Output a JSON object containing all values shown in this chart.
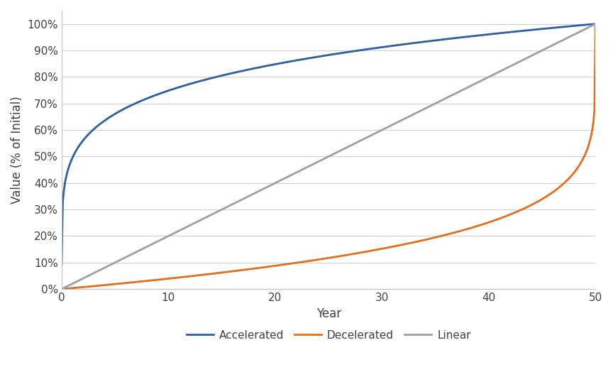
{
  "title": "",
  "xlabel": "Year",
  "ylabel": "Value (% of Initial)",
  "x_min": 0,
  "x_max": 50,
  "y_min": 0.0,
  "y_max": 1.0,
  "x_ticks": [
    0,
    10,
    20,
    30,
    40,
    50
  ],
  "y_ticks": [
    0.0,
    0.1,
    0.2,
    0.3,
    0.4,
    0.5,
    0.6,
    0.7,
    0.8,
    0.9,
    1.0
  ],
  "accelerated_color": "#2e5fa3",
  "decelerated_color": "#e07020",
  "linear_color": "#a0a0a0",
  "line_width": 2.0,
  "background_color": "#ffffff",
  "grid_color": "#d0d0d0",
  "legend_labels": [
    "Accelerated",
    "Decelerated",
    "Linear"
  ],
  "n_points": 500,
  "accel_power": 0.18,
  "decel_power": 0.18
}
